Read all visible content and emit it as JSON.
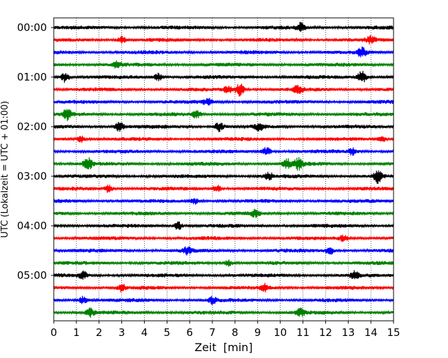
{
  "chart_data": {
    "type": "line",
    "title": "",
    "xlabel": "Zeit  [min]",
    "ylabel": "UTC (Lokalzeit = UTC + 01:00)",
    "xlim": [
      0,
      15
    ],
    "x_ticks": [
      0,
      1,
      2,
      3,
      4,
      5,
      6,
      7,
      8,
      9,
      10,
      11,
      12,
      13,
      14,
      15
    ],
    "y_tick_labels": [
      "00:00",
      "01:00",
      "02:00",
      "03:00",
      "04:00",
      "05:00"
    ],
    "grid": "vertical dotted at every minute",
    "trace_interval_minutes": 15,
    "trace_colors": [
      "#000000",
      "#ff0000",
      "#0000ff",
      "#008000"
    ],
    "series": [
      {
        "start": "00:00",
        "color": "#000000",
        "events": [
          {
            "t": 10.9,
            "amp": 1.5
          }
        ]
      },
      {
        "start": "00:15",
        "color": "#ff0000",
        "events": [
          {
            "t": 3.0,
            "amp": 1.2
          },
          {
            "t": 14.0,
            "amp": 1.2
          }
        ]
      },
      {
        "start": "00:30",
        "color": "#0000ff",
        "events": [
          {
            "t": 13.6,
            "amp": 1.6
          }
        ]
      },
      {
        "start": "00:45",
        "color": "#008000",
        "events": [
          {
            "t": 2.8,
            "amp": 1.1
          }
        ]
      },
      {
        "start": "01:00",
        "color": "#000000",
        "events": [
          {
            "t": 0.5,
            "amp": 1.8
          },
          {
            "t": 4.6,
            "amp": 1.3
          },
          {
            "t": 13.6,
            "amp": 2.5
          }
        ]
      },
      {
        "start": "01:15",
        "color": "#ff0000",
        "events": [
          {
            "t": 7.7,
            "amp": 1.4
          },
          {
            "t": 8.2,
            "amp": 2.4
          },
          {
            "t": 10.8,
            "amp": 1.5
          }
        ]
      },
      {
        "start": "01:30",
        "color": "#0000ff",
        "events": [
          {
            "t": 6.8,
            "amp": 1.2
          }
        ]
      },
      {
        "start": "01:45",
        "color": "#008000",
        "events": [
          {
            "t": 0.6,
            "amp": 1.8
          },
          {
            "t": 6.3,
            "amp": 1.3
          }
        ]
      },
      {
        "start": "02:00",
        "color": "#000000",
        "events": [
          {
            "t": 2.9,
            "amp": 1.6
          },
          {
            "t": 7.3,
            "amp": 1.6
          },
          {
            "t": 9.1,
            "amp": 1.2
          }
        ]
      },
      {
        "start": "02:15",
        "color": "#ff0000",
        "events": [
          {
            "t": 1.2,
            "amp": 1.1
          },
          {
            "t": 14.5,
            "amp": 1.1
          }
        ]
      },
      {
        "start": "02:30",
        "color": "#0000ff",
        "events": [
          {
            "t": 9.4,
            "amp": 1.5
          },
          {
            "t": 13.2,
            "amp": 1.2
          }
        ]
      },
      {
        "start": "02:45",
        "color": "#008000",
        "events": [
          {
            "t": 1.5,
            "amp": 2.2
          },
          {
            "t": 10.3,
            "amp": 1.7
          },
          {
            "t": 10.8,
            "amp": 2.0
          }
        ]
      },
      {
        "start": "03:00",
        "color": "#000000",
        "events": [
          {
            "t": 14.3,
            "amp": 2.2
          },
          {
            "t": 9.5,
            "amp": 1.2
          }
        ]
      },
      {
        "start": "03:15",
        "color": "#ff0000",
        "events": [
          {
            "t": 2.4,
            "amp": 1.2
          },
          {
            "t": 7.2,
            "amp": 1.2
          }
        ]
      },
      {
        "start": "03:30",
        "color": "#0000ff",
        "events": [
          {
            "t": 6.2,
            "amp": 1.1
          }
        ]
      },
      {
        "start": "03:45",
        "color": "#008000",
        "events": [
          {
            "t": 8.9,
            "amp": 1.1
          }
        ]
      },
      {
        "start": "04:00",
        "color": "#000000",
        "events": [
          {
            "t": 5.5,
            "amp": 1.4
          }
        ]
      },
      {
        "start": "04:15",
        "color": "#ff0000",
        "events": [
          {
            "t": 12.8,
            "amp": 1.1
          }
        ]
      },
      {
        "start": "04:30",
        "color": "#0000ff",
        "events": [
          {
            "t": 5.9,
            "amp": 1.1
          },
          {
            "t": 12.2,
            "amp": 1.2
          }
        ]
      },
      {
        "start": "04:45",
        "color": "#008000",
        "events": [
          {
            "t": 7.7,
            "amp": 1.1
          }
        ]
      },
      {
        "start": "05:00",
        "color": "#000000",
        "events": [
          {
            "t": 1.3,
            "amp": 1.3
          },
          {
            "t": 13.3,
            "amp": 1.3
          }
        ]
      },
      {
        "start": "05:15",
        "color": "#ff0000",
        "events": [
          {
            "t": 3.0,
            "amp": 1.2
          },
          {
            "t": 9.3,
            "amp": 1.2
          }
        ]
      },
      {
        "start": "05:30",
        "color": "#0000ff",
        "events": [
          {
            "t": 1.3,
            "amp": 1.3
          },
          {
            "t": 7.0,
            "amp": 1.2
          }
        ]
      },
      {
        "start": "05:45",
        "color": "#008000",
        "events": [
          {
            "t": 1.6,
            "amp": 1.6
          },
          {
            "t": 10.9,
            "amp": 1.3
          }
        ]
      }
    ]
  }
}
